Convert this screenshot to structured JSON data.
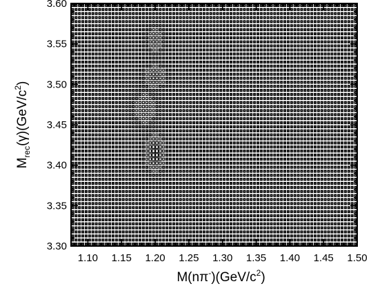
{
  "chart_data": {
    "type": "heatmap",
    "title": "",
    "xlabel": {
      "main": "M(nπ",
      "sup1": "-",
      "mid": ")(GeV/c",
      "sup2": "2",
      "end": ")"
    },
    "ylabel": {
      "main": "M",
      "sub": "rec",
      "mid": "(γ)(GeV/c",
      "sup": "2",
      "end": ")"
    },
    "xlim": [
      1.075,
      1.5
    ],
    "ylim": [
      3.3,
      3.6
    ],
    "x_ticks": [
      "1.10",
      "1.15",
      "1.20",
      "1.25",
      "1.30",
      "1.35",
      "1.40",
      "1.45",
      "1.50"
    ],
    "y_ticks": [
      "3.30",
      "3.35",
      "3.40",
      "3.45",
      "3.50",
      "3.55",
      "3.60"
    ],
    "x_bins": 85,
    "y_bins": 60,
    "background_level": 2,
    "hotspots": [
      {
        "x": 1.2,
        "y": 3.415,
        "peak": 9,
        "sx": 0.008,
        "sy": 0.012
      },
      {
        "x": 1.2,
        "y": 3.51,
        "peak": 5,
        "sx": 0.01,
        "sy": 0.008
      },
      {
        "x": 1.2,
        "y": 3.555,
        "peak": 4,
        "sx": 0.008,
        "sy": 0.01
      },
      {
        "x": 1.185,
        "y": 3.47,
        "peak": 3,
        "sx": 0.012,
        "sy": 0.015
      }
    ],
    "box_color": "#000000"
  }
}
